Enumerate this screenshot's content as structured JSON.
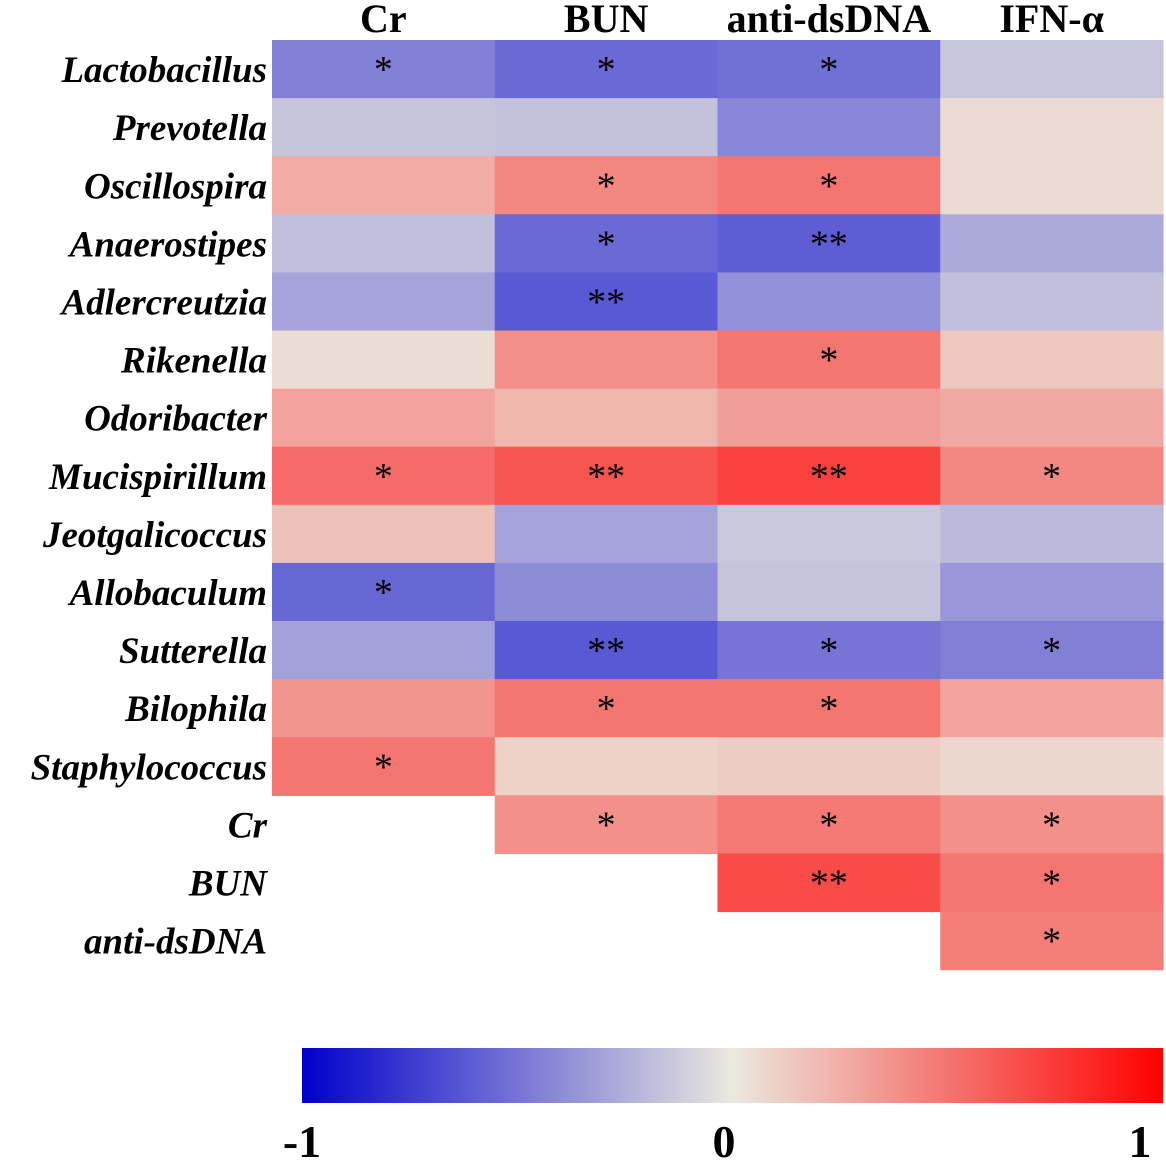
{
  "chart_data": {
    "type": "heatmap",
    "title": "",
    "columns": [
      "Cr",
      "BUN",
      "anti-dsDNA",
      "IFN-α"
    ],
    "rows": [
      "Lactobacillus",
      "Prevotella",
      "Oscillospira",
      "Anaerostipes",
      "Adlercreutzia",
      "Rikenella",
      "Odoribacter",
      "Mucispirillum",
      "Jeotgalicoccus",
      "Allobaculum",
      "Sutterella",
      "Bilophila",
      "Staphylococcus",
      "Cr",
      "BUN",
      "anti-dsDNA"
    ],
    "values": [
      [
        -0.45,
        -0.55,
        -0.52,
        -0.15
      ],
      [
        -0.16,
        -0.17,
        -0.42,
        0.06
      ],
      [
        0.26,
        0.42,
        0.5,
        0.06
      ],
      [
        -0.18,
        -0.55,
        -0.6,
        -0.27
      ],
      [
        -0.3,
        -0.62,
        -0.38,
        -0.18
      ],
      [
        0.05,
        0.38,
        0.5,
        0.14
      ],
      [
        0.3,
        0.22,
        0.32,
        0.27
      ],
      [
        0.54,
        0.64,
        0.72,
        0.42
      ],
      [
        0.17,
        -0.3,
        -0.14,
        -0.2
      ],
      [
        -0.56,
        -0.4,
        -0.16,
        -0.35
      ],
      [
        -0.31,
        -0.62,
        -0.5,
        -0.45
      ],
      [
        0.36,
        0.5,
        0.5,
        0.3
      ],
      [
        0.5,
        0.1,
        0.12,
        0.08
      ],
      [
        null,
        0.38,
        0.48,
        0.38
      ],
      [
        null,
        null,
        0.68,
        0.5
      ],
      [
        null,
        null,
        null,
        0.46
      ]
    ],
    "significance": [
      [
        "*",
        "*",
        "*",
        ""
      ],
      [
        "",
        "",
        "",
        ""
      ],
      [
        "",
        "*",
        "*",
        ""
      ],
      [
        "",
        "*",
        "**",
        ""
      ],
      [
        "",
        "**",
        "",
        ""
      ],
      [
        "",
        "",
        "*",
        ""
      ],
      [
        "",
        "",
        "",
        ""
      ],
      [
        "*",
        "**",
        "**",
        "*"
      ],
      [
        "",
        "",
        "",
        ""
      ],
      [
        "*",
        "",
        "",
        ""
      ],
      [
        "",
        "**",
        "*",
        "*"
      ],
      [
        "",
        "*",
        "*",
        ""
      ],
      [
        "*",
        "",
        "",
        ""
      ],
      [
        "",
        "*",
        "*",
        "*"
      ],
      [
        "",
        "",
        "**",
        "*"
      ],
      [
        "",
        "",
        "",
        "*"
      ]
    ],
    "colorscale": {
      "min": -1,
      "mid": 0,
      "max": 1,
      "low_color": "#0000cc",
      "mid_color": "#ebe9df",
      "high_color": "#ff0000",
      "tick_labels": [
        "-1",
        "0",
        "1"
      ]
    }
  }
}
